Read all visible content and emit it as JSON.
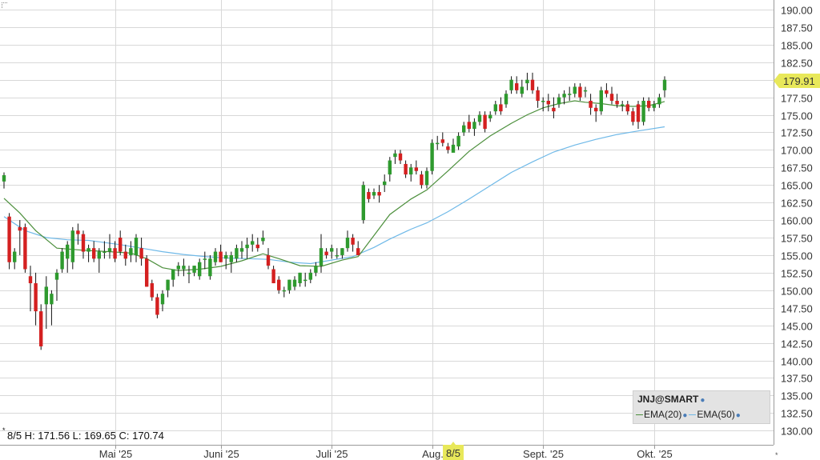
{
  "chart_data": {
    "type": "candlestick",
    "symbol": "JNJ@SMART",
    "ylim": [
      128.5,
      191.0
    ],
    "y_ticks": [
      "190.00",
      "187.50",
      "185.00",
      "182.50",
      "180.00",
      "177.50",
      "175.00",
      "172.50",
      "170.00",
      "167.50",
      "165.00",
      "162.50",
      "160.00",
      "157.50",
      "155.00",
      "152.50",
      "150.00",
      "147.50",
      "145.00",
      "142.50",
      "140.00",
      "137.50",
      "135.00",
      "132.50",
      "130.00"
    ],
    "x_ticks": [
      {
        "label": "Mai '25",
        "index": 21
      },
      {
        "label": "Juni '25",
        "index": 41
      },
      {
        "label": "Juli '25",
        "index": 62
      },
      {
        "label": "Aug.",
        "index": 81
      },
      {
        "label": "Sept. '25",
        "index": 102
      },
      {
        "label": "Okt. '25",
        "index": 123
      }
    ],
    "x_highlight": {
      "label": "8/5",
      "index": 85
    },
    "last_price": {
      "label": "179.91",
      "value": 179.91
    },
    "info_line": "8/5 H: 171.56 L: 169.65 C: 170.74",
    "legend": {
      "title": "JNJ@SMART",
      "items": [
        {
          "name": "EMA(20)",
          "color": "#4c8f3c"
        },
        {
          "name": "EMA(50)",
          "color": "#6fb9e8"
        }
      ]
    },
    "colors": {
      "up": "#2e9a2e",
      "down": "#d42020",
      "grid": "#d8d8d8",
      "highlight": "#e8e85a",
      "ema20": "#4c8f3c",
      "ema50": "#6fb9e8"
    },
    "candles": [
      [
        165.5,
        166.8,
        164.5,
        166.4
      ],
      [
        160.5,
        161.0,
        153.0,
        154.0
      ],
      [
        154.0,
        156.0,
        153.0,
        155.5
      ],
      [
        159.0,
        160.0,
        155.0,
        158.5
      ],
      [
        159.0,
        159.5,
        152.5,
        153.0
      ],
      [
        152.0,
        153.5,
        147.0,
        151.0
      ],
      [
        151.0,
        152.5,
        145.0,
        147.0
      ],
      [
        147.0,
        148.0,
        141.5,
        142.0
      ],
      [
        148.0,
        152.0,
        144.5,
        150.5
      ],
      [
        148.0,
        150.0,
        145.0,
        149.5
      ],
      [
        151.5,
        153.0,
        148.5,
        152.5
      ],
      [
        153.0,
        156.0,
        152.5,
        155.5
      ],
      [
        154.5,
        157.0,
        152.5,
        156.5
      ],
      [
        154.0,
        159.0,
        153.0,
        158.5
      ],
      [
        158.5,
        159.5,
        156.5,
        158.0
      ],
      [
        158.0,
        158.5,
        154.5,
        155.5
      ],
      [
        155.5,
        156.5,
        154.0,
        156.0
      ],
      [
        156.0,
        157.0,
        154.0,
        154.5
      ],
      [
        154.5,
        156.0,
        152.5,
        155.5
      ],
      [
        155.5,
        157.0,
        154.5,
        155.5
      ],
      [
        155.5,
        158.0,
        154.5,
        156.0
      ],
      [
        156.0,
        157.0,
        154.0,
        154.5
      ],
      [
        157.5,
        158.5,
        155.0,
        155.5
      ],
      [
        155.5,
        156.5,
        153.5,
        154.5
      ],
      [
        155.0,
        157.0,
        154.0,
        156.0
      ],
      [
        155.0,
        158.0,
        154.0,
        157.5
      ],
      [
        156.0,
        157.5,
        153.5,
        154.5
      ],
      [
        154.5,
        155.0,
        150.5,
        150.5
      ],
      [
        151.0,
        151.5,
        148.5,
        149.0
      ],
      [
        149.0,
        149.5,
        146.0,
        146.5
      ],
      [
        148.0,
        150.0,
        147.0,
        149.5
      ],
      [
        150.0,
        151.5,
        149.0,
        151.5
      ],
      [
        151.5,
        153.0,
        150.5,
        153.0
      ],
      [
        153.0,
        154.0,
        152.0,
        153.5
      ],
      [
        153.0,
        154.5,
        152.0,
        153.5
      ],
      [
        152.5,
        153.5,
        151.0,
        152.5
      ],
      [
        152.5,
        153.5,
        152.0,
        153.5
      ],
      [
        152.0,
        154.5,
        151.5,
        154.0
      ],
      [
        154.5,
        155.5,
        153.0,
        154.5
      ],
      [
        152.0,
        155.0,
        151.5,
        154.5
      ],
      [
        154.0,
        156.0,
        153.5,
        155.5
      ],
      [
        155.5,
        156.5,
        154.0,
        154.0
      ],
      [
        154.5,
        155.5,
        153.0,
        155.0
      ],
      [
        154.0,
        155.5,
        152.5,
        155.0
      ],
      [
        154.5,
        156.5,
        154.0,
        156.0
      ],
      [
        155.5,
        157.0,
        154.5,
        156.0
      ],
      [
        156.0,
        157.5,
        154.5,
        156.5
      ],
      [
        156.5,
        158.0,
        155.5,
        157.0
      ],
      [
        156.5,
        157.5,
        155.5,
        156.0
      ],
      [
        157.0,
        158.5,
        156.5,
        157.5
      ],
      [
        155.0,
        156.0,
        153.0,
        153.5
      ],
      [
        153.0,
        153.5,
        151.0,
        151.0
      ],
      [
        151.5,
        152.0,
        149.5,
        150.0
      ],
      [
        150.0,
        150.5,
        149.0,
        150.0
      ],
      [
        150.0,
        151.5,
        149.5,
        151.5
      ],
      [
        150.5,
        152.0,
        150.0,
        151.5
      ],
      [
        151.0,
        152.5,
        150.5,
        152.5
      ],
      [
        151.5,
        152.5,
        150.5,
        151.5
      ],
      [
        151.5,
        153.0,
        151.0,
        152.5
      ],
      [
        152.5,
        154.0,
        152.0,
        153.5
      ],
      [
        153.5,
        158.0,
        152.5,
        156.0
      ],
      [
        155.5,
        156.0,
        154.5,
        155.0
      ],
      [
        155.5,
        156.5,
        154.5,
        156.0
      ],
      [
        155.0,
        156.0,
        154.5,
        155.0
      ],
      [
        155.0,
        156.0,
        154.5,
        156.0
      ],
      [
        156.0,
        158.5,
        155.5,
        157.5
      ],
      [
        157.5,
        158.0,
        155.5,
        156.5
      ],
      [
        156.0,
        157.0,
        155.0,
        155.0
      ],
      [
        160.0,
        165.5,
        159.5,
        165.0
      ],
      [
        164.0,
        164.5,
        162.5,
        163.0
      ],
      [
        163.5,
        164.5,
        163.0,
        164.0
      ],
      [
        164.0,
        165.0,
        162.5,
        163.5
      ],
      [
        165.0,
        166.5,
        164.0,
        165.5
      ],
      [
        166.5,
        169.0,
        165.5,
        168.5
      ],
      [
        169.0,
        170.0,
        168.0,
        169.5
      ],
      [
        169.5,
        170.0,
        168.0,
        168.5
      ],
      [
        168.0,
        168.5,
        166.0,
        166.5
      ],
      [
        166.5,
        168.0,
        165.5,
        167.5
      ],
      [
        167.5,
        168.5,
        166.5,
        167.0
      ],
      [
        166.5,
        167.0,
        164.5,
        165.0
      ],
      [
        165.0,
        167.5,
        164.5,
        167.0
      ],
      [
        167.0,
        171.5,
        166.5,
        171.0
      ],
      [
        171.0,
        172.0,
        170.0,
        171.0
      ],
      [
        171.5,
        172.5,
        170.5,
        171.0
      ],
      [
        170.5,
        171.0,
        169.5,
        170.0
      ],
      [
        169.6,
        171.6,
        169.65,
        170.74
      ],
      [
        170.5,
        172.5,
        170.0,
        172.0
      ],
      [
        172.5,
        174.0,
        172.0,
        173.5
      ],
      [
        174.0,
        175.0,
        172.5,
        173.0
      ],
      [
        173.0,
        174.5,
        172.0,
        174.0
      ],
      [
        174.0,
        175.5,
        173.5,
        175.0
      ],
      [
        175.0,
        175.5,
        172.5,
        173.0
      ],
      [
        174.5,
        175.5,
        174.0,
        175.0
      ],
      [
        175.5,
        177.0,
        175.0,
        176.5
      ],
      [
        176.5,
        177.5,
        175.0,
        175.5
      ],
      [
        176.5,
        178.5,
        176.0,
        178.0
      ],
      [
        178.5,
        180.5,
        178.0,
        180.0
      ],
      [
        179.5,
        180.5,
        178.0,
        178.5
      ],
      [
        178.0,
        180.0,
        177.5,
        179.0
      ],
      [
        179.5,
        181.0,
        178.5,
        180.0
      ],
      [
        180.0,
        181.0,
        178.0,
        178.5
      ],
      [
        178.5,
        179.0,
        176.0,
        177.0
      ],
      [
        177.0,
        177.5,
        175.5,
        177.0
      ],
      [
        177.0,
        178.0,
        175.5,
        176.5
      ],
      [
        176.0,
        177.5,
        174.5,
        175.5
      ],
      [
        176.5,
        178.0,
        176.0,
        177.5
      ],
      [
        177.5,
        178.5,
        176.5,
        178.0
      ],
      [
        178.0,
        179.0,
        177.0,
        178.0
      ],
      [
        178.0,
        179.5,
        177.5,
        179.0
      ],
      [
        179.0,
        179.5,
        177.0,
        177.5
      ],
      [
        178.5,
        179.0,
        177.5,
        178.5
      ],
      [
        177.0,
        178.0,
        175.0,
        176.0
      ],
      [
        176.0,
        176.5,
        174.0,
        175.5
      ],
      [
        175.5,
        179.0,
        175.0,
        178.5
      ],
      [
        178.5,
        179.5,
        177.5,
        178.0
      ],
      [
        178.0,
        179.0,
        176.5,
        177.0
      ],
      [
        177.0,
        178.0,
        176.0,
        176.5
      ],
      [
        176.5,
        177.0,
        175.5,
        176.5
      ],
      [
        176.5,
        177.0,
        175.0,
        175.5
      ],
      [
        175.5,
        176.0,
        173.5,
        174.0
      ],
      [
        176.5,
        177.0,
        173.0,
        174.0
      ],
      [
        174.0,
        177.5,
        173.5,
        177.0
      ],
      [
        177.0,
        177.5,
        175.5,
        176.0
      ],
      [
        176.0,
        177.0,
        175.5,
        176.5
      ],
      [
        176.5,
        178.0,
        176.0,
        177.5
      ],
      [
        178.5,
        180.5,
        177.5,
        180.0
      ]
    ],
    "ema20": [
      [
        0,
        163.1
      ],
      [
        3,
        161.0
      ],
      [
        6,
        158.5
      ],
      [
        10,
        156.0
      ],
      [
        15,
        155.7
      ],
      [
        20,
        155.5
      ],
      [
        24,
        155.3
      ],
      [
        27,
        154.5
      ],
      [
        30,
        153.2
      ],
      [
        33,
        152.8
      ],
      [
        37,
        153.0
      ],
      [
        41,
        153.4
      ],
      [
        45,
        154.2
      ],
      [
        49,
        155.2
      ],
      [
        52,
        154.5
      ],
      [
        56,
        153.5
      ],
      [
        60,
        153.4
      ],
      [
        64,
        154.3
      ],
      [
        67,
        154.8
      ],
      [
        70,
        157.8
      ],
      [
        73,
        160.8
      ],
      [
        77,
        163.0
      ],
      [
        80,
        164.3
      ],
      [
        84,
        167.0
      ],
      [
        88,
        169.8
      ],
      [
        92,
        172.0
      ],
      [
        96,
        173.8
      ],
      [
        99,
        175.0
      ],
      [
        102,
        176.0
      ],
      [
        105,
        176.6
      ],
      [
        108,
        177.0
      ],
      [
        110,
        176.8
      ],
      [
        113,
        176.6
      ],
      [
        116,
        176.3
      ],
      [
        119,
        176.2
      ],
      [
        122,
        176.3
      ],
      [
        125,
        176.9
      ]
    ],
    "ema50": [
      [
        0,
        160.5
      ],
      [
        4,
        158.5
      ],
      [
        8,
        157.5
      ],
      [
        12,
        157.2
      ],
      [
        16,
        157.1
      ],
      [
        22,
        156.5
      ],
      [
        26,
        156.0
      ],
      [
        30,
        155.5
      ],
      [
        34,
        155.1
      ],
      [
        38,
        154.8
      ],
      [
        42,
        154.6
      ],
      [
        46,
        154.5
      ],
      [
        50,
        154.4
      ],
      [
        54,
        154.0
      ],
      [
        58,
        153.8
      ],
      [
        62,
        154.3
      ],
      [
        66,
        154.8
      ],
      [
        70,
        156.1
      ],
      [
        73,
        157.3
      ],
      [
        77,
        158.7
      ],
      [
        80,
        159.6
      ],
      [
        84,
        161.2
      ],
      [
        88,
        163.0
      ],
      [
        92,
        164.9
      ],
      [
        96,
        166.8
      ],
      [
        100,
        168.3
      ],
      [
        104,
        169.7
      ],
      [
        108,
        170.7
      ],
      [
        112,
        171.5
      ],
      [
        116,
        172.2
      ],
      [
        120,
        172.7
      ],
      [
        125,
        173.3
      ]
    ]
  }
}
